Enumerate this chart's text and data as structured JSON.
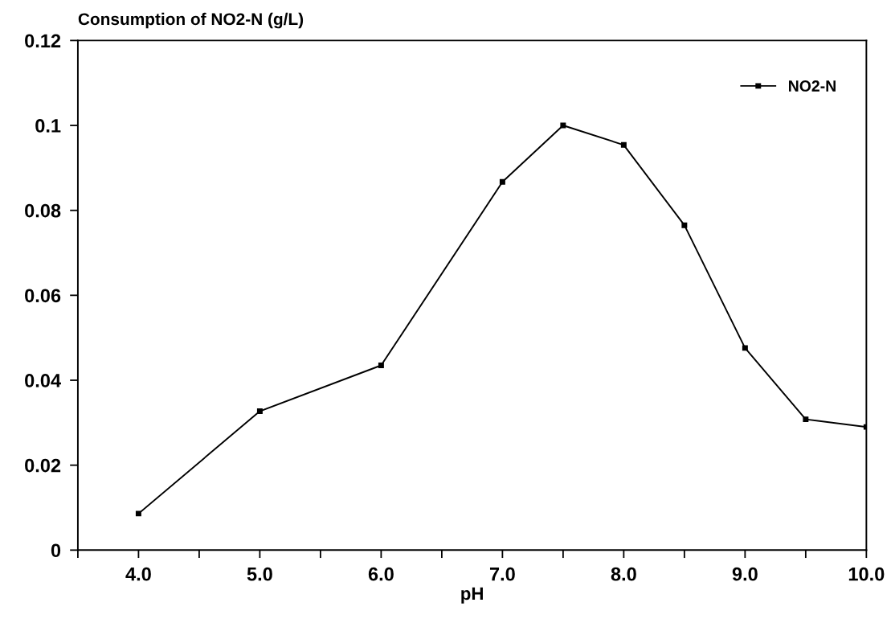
{
  "chart_data": {
    "type": "line",
    "title": "Consumption of NO2-N (g/L)",
    "xlabel": "pH",
    "x": [
      4.0,
      5.0,
      6.0,
      7.0,
      7.5,
      8.0,
      8.5,
      9.0,
      9.5,
      10.0
    ],
    "series": [
      {
        "name": "NO2-N",
        "color": "#000000",
        "values": [
          0.0086,
          0.0327,
          0.0435,
          0.0867,
          0.1,
          0.0954,
          0.0765,
          0.0476,
          0.0308,
          0.029
        ]
      }
    ],
    "xlim": [
      3.5,
      10.0
    ],
    "xticks": [
      {
        "value": 3.5,
        "label": null
      },
      {
        "value": 4.0,
        "label": "4.0"
      },
      {
        "value": 4.5,
        "label": null
      },
      {
        "value": 5.0,
        "label": "5.0"
      },
      {
        "value": 5.5,
        "label": null
      },
      {
        "value": 6.0,
        "label": "6.0"
      },
      {
        "value": 6.5,
        "label": null
      },
      {
        "value": 7.0,
        "label": "7.0"
      },
      {
        "value": 7.5,
        "label": null
      },
      {
        "value": 8.0,
        "label": "8.0"
      },
      {
        "value": 8.5,
        "label": null
      },
      {
        "value": 9.0,
        "label": "9.0"
      },
      {
        "value": 9.5,
        "label": null
      },
      {
        "value": 10.0,
        "label": "10.0"
      }
    ],
    "ylim": [
      0,
      0.12
    ],
    "yticks": [
      0,
      0.02,
      0.04,
      0.06,
      0.08,
      {
        "value": 0.1,
        "label": "0.1"
      },
      {
        "value": 0.12,
        "label": "0.12"
      }
    ],
    "grid": false,
    "legend": "top right",
    "marker": "square",
    "line_style": "solid"
  }
}
